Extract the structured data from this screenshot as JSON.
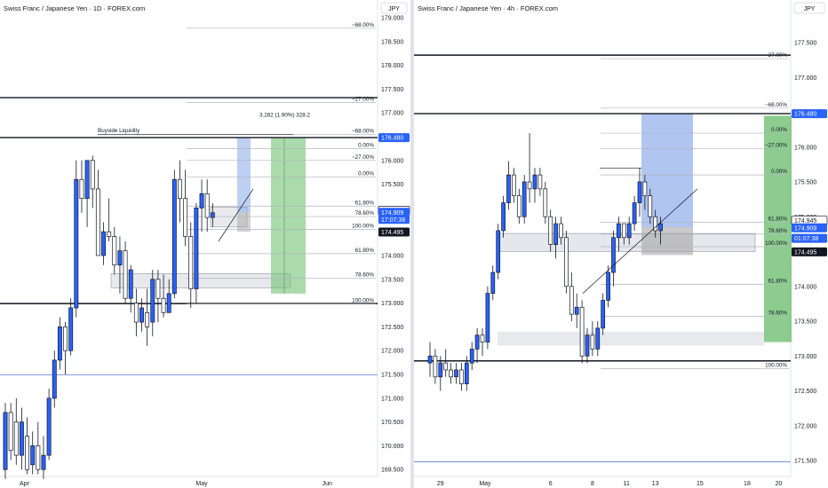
{
  "colors": {
    "bull": "#2962ff",
    "bear": "#ffffff",
    "wick": "#131722",
    "axis_text": "#131722",
    "grid_level": "#b2b5be",
    "blue_zone": "#7b9fe6",
    "green_zone": "#66bb6a",
    "gray_zone": "#9e9e9e",
    "tag_blue": "#2962ff",
    "tag_dark": "#131722",
    "tag_white": "#ffffff"
  },
  "chart_data": [
    {
      "type": "candlestick",
      "title": "Swiss Franc / Japanese Yen · 1D · FOREX.com",
      "currency_button": "JPY",
      "y_ticks": [
        "179.000",
        "178.500",
        "178.000",
        "177.500",
        "177.000",
        "176.500",
        "176.000",
        "175.500",
        "175.000",
        "174.500",
        "174.000",
        "173.500",
        "173.000",
        "172.500",
        "172.000",
        "171.500",
        "171.000",
        "170.500",
        "170.000",
        "169.500"
      ],
      "y_tick_values": [
        179.0,
        178.5,
        178.0,
        177.5,
        177.0,
        176.5,
        176.0,
        175.5,
        175.0,
        174.5,
        174.0,
        173.5,
        173.0,
        172.5,
        172.0,
        171.5,
        171.0,
        170.5,
        170.0,
        169.5
      ],
      "ylim": [
        169.25,
        179.25
      ],
      "x_ticks": [
        "Apr",
        "May",
        "Jun"
      ],
      "x_tick_index": [
        3.5,
        36,
        59
      ],
      "x_count": 65,
      "price_tags": [
        {
          "label": "176.480",
          "value": 176.48,
          "style": "blue"
        },
        {
          "label": "174.945",
          "value": 174.945,
          "style": "white"
        },
        {
          "label": "174.909",
          "value": 174.909,
          "style": "blue"
        },
        {
          "label": "17:07:38",
          "value": 174.76,
          "style": "blue"
        },
        {
          "label": "174.495",
          "value": 174.495,
          "style": "dark"
        }
      ],
      "fib_levels": [
        {
          "label": "~68.00%",
          "value": 178.78
        },
        {
          "label": "~27.00%",
          "value": 177.22
        },
        {
          "label": "~68.00%",
          "value": 176.55
        },
        {
          "label": "0.00%",
          "value": 176.25
        },
        {
          "label": "~27.00%",
          "value": 176.0
        },
        {
          "label": "0.00%",
          "value": 175.65
        },
        {
          "label": "61.80%",
          "value": 175.04
        },
        {
          "label": "78.60%",
          "value": 174.82
        },
        {
          "label": "100.00%",
          "value": 174.55
        },
        {
          "label": "61.80%",
          "value": 174.04
        },
        {
          "label": "78.60%",
          "value": 173.52
        },
        {
          "label": "100.00%",
          "value": 172.98
        }
      ],
      "horizontal_lines": [
        177.32,
        176.48,
        172.99,
        171.49
      ],
      "annotations": [
        {
          "text": "Buyside Liquidity",
          "value": 176.6
        },
        {
          "text": "3.282 (1.90%) 328.2",
          "value": 176.92
        }
      ],
      "candles": [
        [
          169.5,
          170.9,
          169.3,
          170.7
        ],
        [
          170.7,
          170.9,
          169.7,
          169.9
        ],
        [
          170.5,
          171.0,
          169.6,
          169.8
        ],
        [
          169.8,
          170.8,
          169.5,
          170.5
        ],
        [
          170.2,
          170.6,
          169.4,
          169.5
        ],
        [
          169.6,
          170.3,
          169.4,
          170.0
        ],
        [
          170.0,
          170.5,
          169.4,
          169.5
        ],
        [
          169.5,
          170.2,
          169.3,
          169.8
        ],
        [
          169.8,
          171.2,
          169.7,
          171.0
        ],
        [
          171.0,
          172.0,
          170.8,
          171.8
        ],
        [
          171.8,
          172.7,
          171.6,
          172.5
        ],
        [
          172.5,
          172.6,
          171.5,
          172.0
        ],
        [
          172.0,
          173.1,
          171.9,
          172.9
        ],
        [
          172.9,
          176.0,
          172.7,
          175.6
        ],
        [
          175.6,
          176.0,
          174.9,
          175.2
        ],
        [
          175.2,
          176.0,
          174.6,
          176.0
        ],
        [
          176.0,
          176.1,
          175.0,
          175.4
        ],
        [
          175.4,
          175.8,
          174.0,
          174.0
        ],
        [
          174.0,
          174.7,
          173.8,
          174.5
        ],
        [
          174.5,
          175.2,
          174.3,
          174.4
        ],
        [
          174.4,
          174.6,
          173.6,
          173.8
        ],
        [
          173.8,
          174.4,
          173.2,
          174.1
        ],
        [
          174.1,
          174.3,
          173.0,
          173.1
        ],
        [
          173.1,
          173.8,
          172.8,
          173.7
        ],
        [
          173.0,
          173.3,
          172.3,
          172.6
        ],
        [
          172.6,
          173.1,
          172.4,
          172.9
        ],
        [
          172.8,
          173.3,
          172.1,
          172.5
        ],
        [
          172.6,
          173.7,
          172.3,
          173.5
        ],
        [
          173.5,
          173.7,
          172.6,
          173.1
        ],
        [
          173.1,
          173.6,
          172.7,
          172.8
        ],
        [
          172.8,
          173.5,
          172.8,
          173.2
        ],
        [
          173.2,
          175.8,
          173.1,
          175.6
        ],
        [
          175.6,
          176.0,
          174.7,
          175.2
        ],
        [
          175.2,
          175.8,
          174.2,
          174.4
        ],
        [
          174.4,
          174.7,
          172.9,
          173.3
        ],
        [
          173.3,
          175.1,
          173.0,
          175.0
        ],
        [
          175.0,
          175.6,
          174.5,
          175.3
        ],
        [
          175.3,
          175.6,
          174.5,
          174.8
        ],
        [
          174.8,
          175.1,
          174.6,
          174.9
        ]
      ]
    },
    {
      "type": "candlestick",
      "title": "Swiss Franc / Japanese Yen · 4h · FOREX.com",
      "currency_button": "JPY",
      "y_ticks": [
        "177.500",
        "177.000",
        "176.500",
        "176.000",
        "175.500",
        "175.000",
        "174.500",
        "174.000",
        "173.500",
        "173.000",
        "172.500",
        "172.000",
        "171.500"
      ],
      "y_tick_values": [
        177.5,
        177.0,
        176.5,
        176.0,
        175.5,
        175.0,
        174.5,
        174.0,
        173.5,
        173.0,
        172.5,
        172.0,
        171.5
      ],
      "ylim": [
        171.1,
        178.0
      ],
      "x_ticks": [
        "29",
        "May",
        "6",
        "8",
        "11",
        "13",
        "15",
        "18",
        "20"
      ],
      "x_tick_index": [
        2,
        10.5,
        23,
        31,
        37.5,
        43,
        51.5,
        60.5,
        66.5
      ],
      "x_count": 69,
      "price_tags": [
        {
          "label": "176.480",
          "value": 176.48,
          "style": "blue"
        },
        {
          "label": "174.945",
          "value": 174.945,
          "style": "white"
        },
        {
          "label": "174.909",
          "value": 174.84,
          "style": "blue"
        },
        {
          "label": "01:07:38",
          "value": 174.69,
          "style": "blue"
        },
        {
          "label": "174.495",
          "value": 174.495,
          "style": "dark"
        }
      ],
      "fib_levels": [
        {
          "label": "~27.00%",
          "value": 177.27
        },
        {
          "label": "~68.00%",
          "value": 176.56
        },
        {
          "label": "0.00%",
          "value": 176.2
        },
        {
          "label": "~27.00%",
          "value": 175.98
        },
        {
          "label": "0.00%",
          "value": 175.6
        },
        {
          "label": "61.80%",
          "value": 174.92
        },
        {
          "label": "78.60%",
          "value": 174.75
        },
        {
          "label": "100.00%",
          "value": 174.57
        },
        {
          "label": "61.80%",
          "value": 174.03
        },
        {
          "label": "78.60%",
          "value": 173.57
        },
        {
          "label": "100.00%",
          "value": 172.82
        }
      ],
      "horizontal_lines": [
        177.32,
        176.48,
        172.93,
        171.48
      ],
      "candles": [
        [
          172.9,
          173.2,
          172.7,
          173.0
        ],
        [
          173.0,
          173.1,
          172.6,
          172.7
        ],
        [
          172.7,
          173.0,
          172.5,
          172.9
        ],
        [
          172.9,
          173.1,
          172.7,
          172.8
        ],
        [
          172.8,
          172.9,
          172.6,
          172.7
        ],
        [
          172.7,
          172.9,
          172.6,
          172.8
        ],
        [
          172.8,
          172.9,
          172.5,
          172.6
        ],
        [
          172.6,
          173.0,
          172.5,
          172.9
        ],
        [
          172.9,
          173.2,
          172.8,
          173.1
        ],
        [
          173.1,
          173.4,
          172.9,
          173.3
        ],
        [
          173.3,
          173.4,
          173.0,
          173.2
        ],
        [
          173.2,
          174.0,
          173.1,
          173.9
        ],
        [
          173.9,
          174.3,
          173.8,
          174.2
        ],
        [
          174.2,
          174.9,
          174.1,
          174.8
        ],
        [
          174.8,
          175.3,
          174.7,
          175.2
        ],
        [
          175.2,
          175.8,
          175.1,
          175.6
        ],
        [
          175.6,
          175.7,
          175.2,
          175.3
        ],
        [
          175.3,
          175.4,
          174.9,
          175.0
        ],
        [
          175.0,
          175.6,
          174.9,
          175.5
        ],
        [
          175.5,
          176.2,
          175.2,
          175.4
        ],
        [
          175.4,
          175.7,
          175.2,
          175.6
        ],
        [
          175.6,
          175.7,
          175.3,
          175.4
        ],
        [
          175.4,
          175.5,
          174.9,
          175.0
        ],
        [
          175.0,
          175.1,
          174.5,
          174.6
        ],
        [
          174.6,
          175.0,
          174.4,
          174.9
        ],
        [
          174.9,
          175.0,
          174.6,
          174.7
        ],
        [
          174.7,
          174.8,
          173.9,
          174.0
        ],
        [
          174.0,
          174.2,
          173.5,
          173.6
        ],
        [
          173.6,
          173.9,
          173.4,
          173.7
        ],
        [
          173.7,
          173.8,
          172.9,
          173.0
        ],
        [
          173.0,
          173.4,
          172.9,
          173.3
        ],
        [
          173.3,
          173.5,
          173.0,
          173.1
        ],
        [
          173.1,
          173.5,
          173.0,
          173.4
        ],
        [
          173.4,
          173.9,
          173.3,
          173.8
        ],
        [
          173.8,
          174.3,
          173.7,
          174.2
        ],
        [
          174.2,
          174.8,
          174.0,
          174.7
        ],
        [
          174.7,
          175.0,
          174.5,
          174.9
        ],
        [
          174.9,
          174.9,
          174.6,
          174.7
        ],
        [
          174.7,
          175.0,
          174.6,
          174.9
        ],
        [
          174.9,
          175.3,
          174.8,
          175.2
        ],
        [
          175.2,
          175.7,
          175.0,
          175.5
        ],
        [
          175.5,
          175.6,
          175.1,
          175.3
        ],
        [
          175.3,
          175.4,
          174.9,
          175.0
        ],
        [
          175.0,
          175.1,
          174.7,
          174.8
        ],
        [
          174.8,
          175.0,
          174.6,
          174.9
        ]
      ]
    }
  ]
}
